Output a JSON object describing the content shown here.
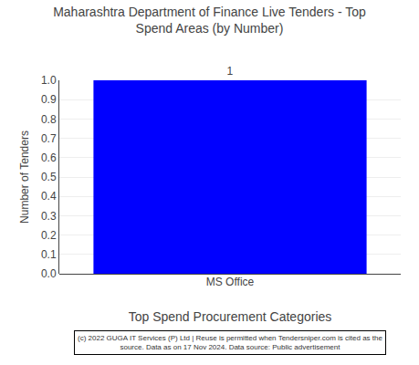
{
  "chart_data": {
    "type": "bar",
    "title": "Maharashtra Department of Finance Live Tenders - Top\nSpend Areas (by Number)",
    "categories": [
      "MS Office"
    ],
    "values": [
      1
    ],
    "color": "#0000FF",
    "xlabel": "Top Spend Procurement Categories",
    "ylabel": "Number of Tenders",
    "ylim": [
      0,
      1.0
    ],
    "yticks": [
      {
        "value": 0,
        "label": "0.0"
      },
      0.1,
      0.2,
      0.3,
      0.4,
      0.5,
      0.6,
      0.7,
      0.8,
      0.9,
      {
        "value": 1,
        "label": "1.0"
      }
    ],
    "grid": true,
    "data_labels": true,
    "annotations": [
      "(c) 2022 GUGA IT Services (P) Ltd | Reuse is permitted when Tendersniper.com is cited as the",
      "source. Data as on 17 Nov 2024. Data source: Public advertisement"
    ]
  }
}
